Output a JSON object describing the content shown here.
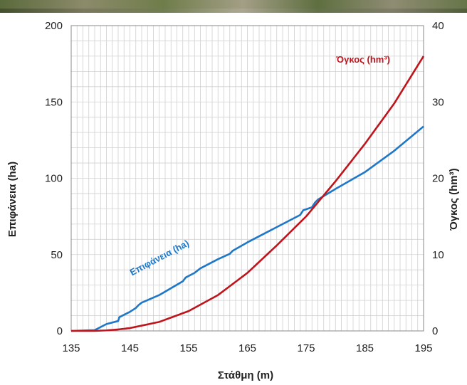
{
  "chart_data": {
    "type": "line",
    "xlabel": "Στάθμη (m)",
    "ylabel": "Επιφάνεια (ha)",
    "y2label": "Όγκος (hm³)",
    "xlim": [
      135,
      195
    ],
    "ylim": [
      0,
      200
    ],
    "y2lim": [
      0,
      40
    ],
    "x_ticks": [
      "135",
      "145",
      "155",
      "165",
      "175",
      "185",
      "195"
    ],
    "y_ticks": [
      "0",
      "50",
      "100",
      "150",
      "200"
    ],
    "y2_ticks": [
      "0",
      "10",
      "20",
      "30",
      "40"
    ],
    "grid": true,
    "colors": {
      "area": "#1f77c8",
      "volume": "#c0141c"
    },
    "series": [
      {
        "name": "Επιφάνεια (ha)",
        "axis": "left",
        "x": [
          135,
          139,
          140,
          141,
          143,
          143.2,
          145,
          146,
          146.5,
          147,
          150,
          154,
          154.5,
          156,
          157,
          160,
          162,
          162.5,
          165,
          170,
          174,
          174.5,
          176,
          176.5,
          177,
          180,
          185,
          190,
          195
        ],
        "y": [
          0,
          0.5,
          2.5,
          4.5,
          6.5,
          9,
          12.5,
          15,
          17,
          18.5,
          23.5,
          32.5,
          35,
          38,
          41,
          47,
          50.5,
          52.5,
          58,
          68,
          76,
          79,
          81,
          84,
          86,
          93,
          104,
          118,
          134
        ]
      },
      {
        "name": "Όγκος (hm³)",
        "axis": "right",
        "x": [
          135,
          139,
          141,
          143,
          145,
          150,
          155,
          160,
          165,
          170,
          175,
          180,
          185,
          190,
          195
        ],
        "y": [
          0,
          0,
          0.07,
          0.19,
          0.37,
          1.18,
          2.6,
          4.7,
          7.6,
          11.2,
          15.0,
          19.6,
          24.5,
          29.8,
          36
        ]
      }
    ],
    "annotations": [
      {
        "text": "Επιφάνεια (ha)",
        "series": 0
      },
      {
        "text": "Όγκος (hm³)",
        "series": 1
      }
    ]
  }
}
